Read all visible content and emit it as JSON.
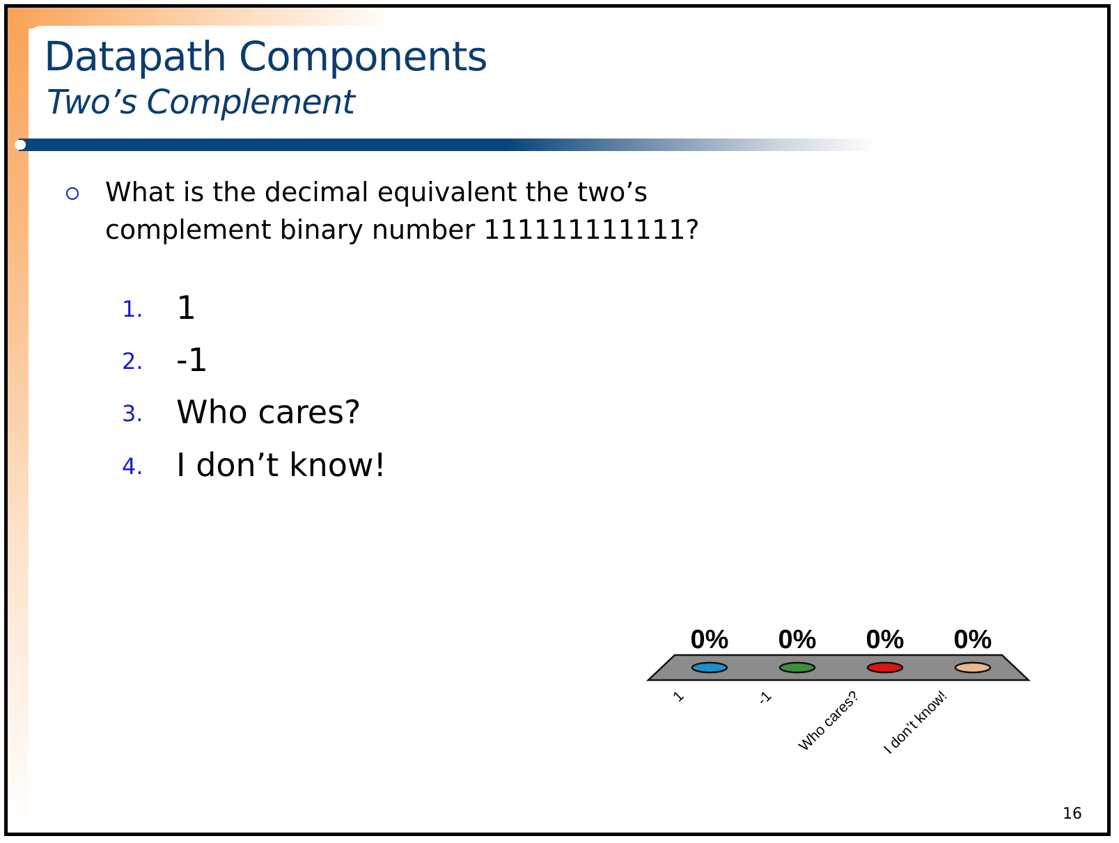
{
  "slide": {
    "title": "Datapath Components",
    "subtitle": "Two’s Complement",
    "page_number": "16"
  },
  "question": {
    "text": "What is the decimal equivalent the two’s complement binary number 111111111111?"
  },
  "options": [
    {
      "number": "1.",
      "label": "1"
    },
    {
      "number": "2.",
      "label": "-1"
    },
    {
      "number": "3.",
      "label": "Who cares?"
    },
    {
      "number": "4.",
      "label": "I don’t know!"
    }
  ],
  "chart_data": {
    "type": "bar",
    "categories": [
      "1",
      "-1",
      "Who cares?",
      "I don’t know!"
    ],
    "values": [
      0,
      0,
      0,
      0
    ],
    "value_labels": [
      "0%",
      "0%",
      "0%",
      "0%"
    ],
    "unit": "%",
    "colors": [
      "#1e8fcf",
      "#3f8f3f",
      "#e01414",
      "#e8b890"
    ],
    "platform_color": "#8c8c8c",
    "xlabel": "",
    "ylabel": ""
  }
}
